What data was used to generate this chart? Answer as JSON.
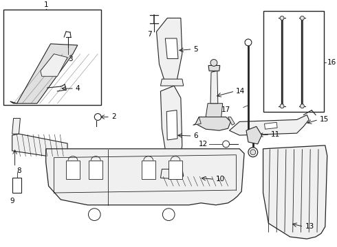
{
  "bg_color": "#ffffff",
  "line_color": "#222222",
  "fill_light": "#f0f0f0",
  "fill_mid": "#e0e0e0",
  "parts_labels": [
    "1",
    "2",
    "3",
    "4",
    "5",
    "6",
    "7",
    "8",
    "9",
    "10",
    "11",
    "12",
    "13",
    "14",
    "15",
    "16",
    "17"
  ]
}
